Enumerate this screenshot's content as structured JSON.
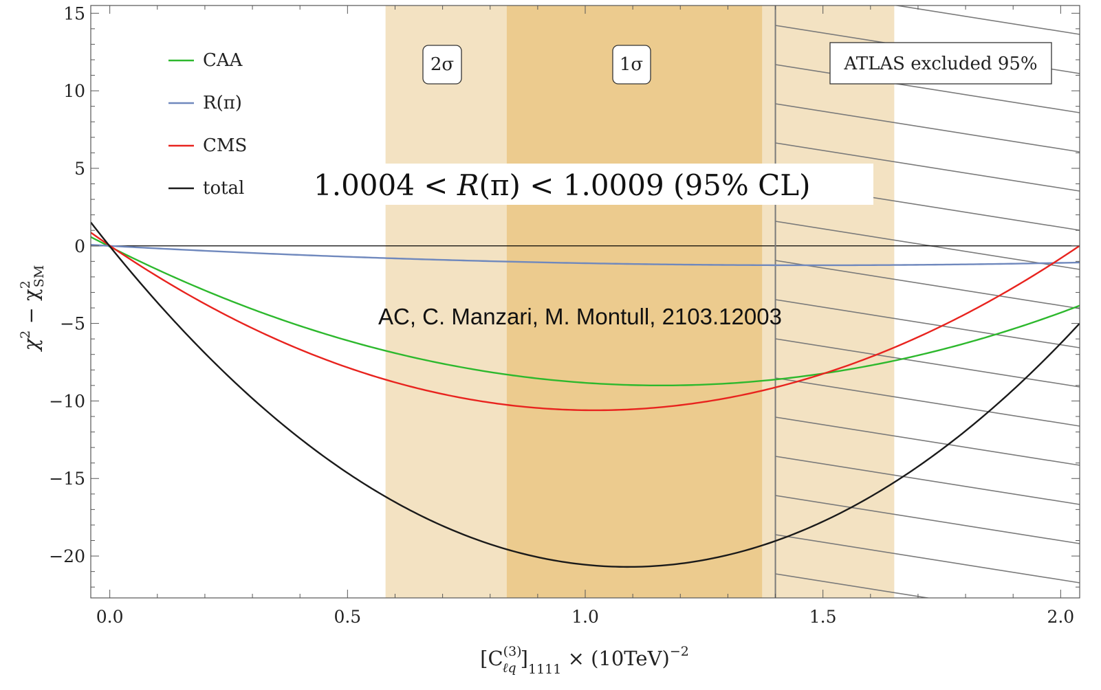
{
  "chart_data": {
    "type": "line",
    "xlabel": {
      "main": "[C",
      "sup": "(3)",
      "sub_inner": "ℓq",
      "bracket_close": "]",
      "sub_outer": "1111",
      "tail_main": " × (10TeV)",
      "tail_sup": "−2"
    },
    "ylabel": {
      "chi": "χ",
      "sup1": "2",
      "minus": " − χ",
      "sup2": "2",
      "sub2": "SM"
    },
    "xlim": [
      -0.04,
      2.04
    ],
    "ylim": [
      -22.7,
      15.5
    ],
    "x_ticks": [
      {
        "value": 0.0,
        "label": "0.0"
      },
      {
        "value": 0.5,
        "label": "0.5"
      },
      {
        "value": 1.0,
        "label": "1.0"
      },
      {
        "value": 1.5,
        "label": "1.5"
      },
      {
        "value": 2.0,
        "label": "2.0"
      }
    ],
    "y_ticks": [
      {
        "value": 15,
        "label": "15"
      },
      {
        "value": 10,
        "label": "10"
      },
      {
        "value": 5,
        "label": "5"
      },
      {
        "value": 0,
        "label": "0"
      },
      {
        "value": -5,
        "label": "−5"
      },
      {
        "value": -10,
        "label": "−10"
      },
      {
        "value": -15,
        "label": "−15"
      },
      {
        "value": -20,
        "label": "−20"
      }
    ],
    "x_minor_step": 0.1,
    "y_minor_step": 1,
    "bands": [
      {
        "label": "2σ",
        "x0": 0.58,
        "x1": 1.65,
        "color": "#f3e2c2"
      },
      {
        "label": "1σ",
        "x0": 0.835,
        "x1": 1.372,
        "color": "#eccb8e"
      }
    ],
    "excluded": {
      "label": "ATLAS excluded 95%",
      "x0": 1.4,
      "hatch_color": "#7a7a7a"
    },
    "series": [
      {
        "name": "CAA",
        "color": "#2db82d",
        "x0": 1.16,
        "a": 6.65,
        "c": -9.0
      },
      {
        "name": "R(π)",
        "color": "#6f88bd",
        "x0": 1.48,
        "a": 0.57,
        "c": -1.25
      },
      {
        "name": "CMS",
        "color": "#e8231e",
        "x0": 1.02,
        "a": 10.2,
        "c": -10.6
      },
      {
        "name": "total",
        "color": "#1a1a1a",
        "x0": 1.09,
        "a": 17.4,
        "c": -20.7
      }
    ],
    "legend_position": "top-left",
    "annotations": {
      "main_left": "1.0004 < ",
      "main_r": "R",
      "main_mid": "(π) < 1.0009 (95% CL)",
      "citation": "AC, C. Manzari, M. Montull, 2103.12003"
    }
  }
}
